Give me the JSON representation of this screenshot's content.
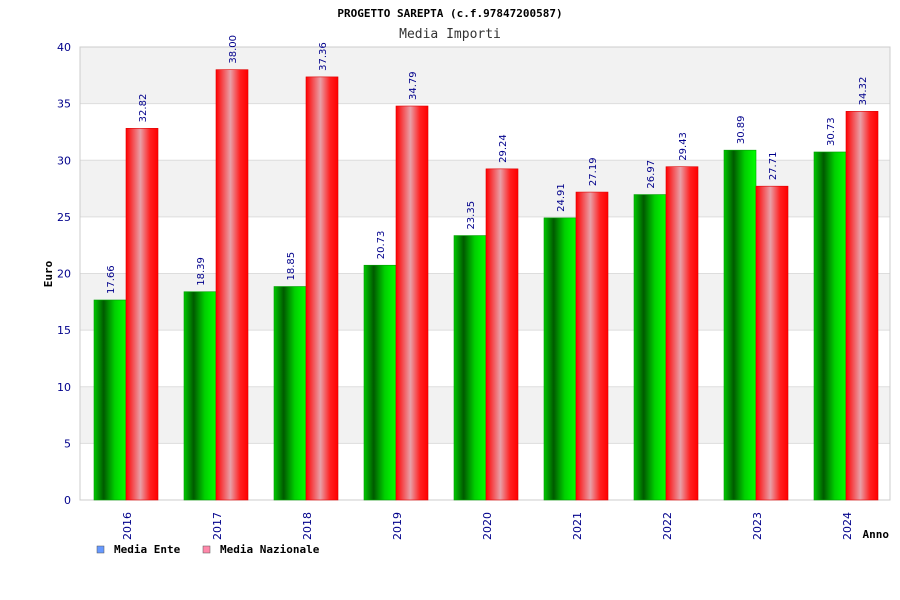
{
  "chart_data": {
    "type": "bar",
    "title": "PROGETTO SAREPTA (c.f.97847200587)",
    "subtitle": "Media Importi",
    "xlabel": "Anno",
    "ylabel": "Euro",
    "ylim": [
      0,
      40
    ],
    "yticks": [
      "0",
      "5",
      "10",
      "15",
      "20",
      "25",
      "30",
      "35",
      "40"
    ],
    "categories": [
      "2016",
      "2017",
      "2018",
      "2019",
      "2020",
      "2021",
      "2022",
      "2023",
      "2024"
    ],
    "series": [
      {
        "name": "Media Ente",
        "color": "#00cc00",
        "legend_color": "#6699ff",
        "values": [
          17.66,
          18.39,
          18.85,
          20.73,
          23.35,
          24.91,
          26.97,
          30.89,
          30.73
        ],
        "labels": [
          "17.66",
          "18.39",
          "18.85",
          "20.73",
          "23.35",
          "24.91",
          "26.97",
          "30.89",
          "30.73"
        ]
      },
      {
        "name": "Media Nazionale",
        "color": "#ff0000",
        "legend_color": "#ff88aa",
        "values": [
          32.82,
          38.0,
          37.36,
          34.79,
          29.24,
          27.19,
          29.43,
          27.71,
          34.32
        ],
        "labels": [
          "32.82",
          "38.00",
          "37.36",
          "34.79",
          "29.24",
          "27.19",
          "29.43",
          "27.71",
          "34.32"
        ]
      }
    ],
    "grid": true,
    "legend_position": "bottom-left"
  }
}
